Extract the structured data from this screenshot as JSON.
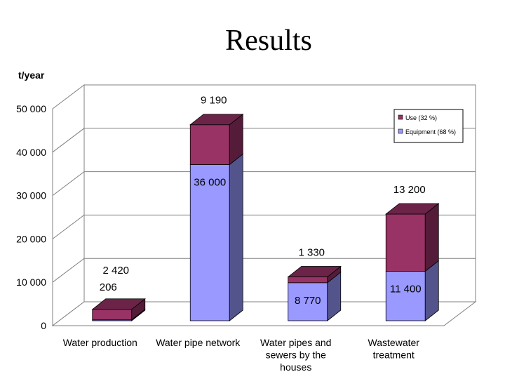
{
  "page": {
    "title": "Results"
  },
  "chart_data": {
    "type": "bar",
    "stacked": true,
    "three_d": true,
    "ylabel": "t/year",
    "ylim": [
      0,
      50000
    ],
    "yticks": [
      "0",
      "10 000",
      "20 000",
      "30 000",
      "40 000",
      "50 000"
    ],
    "grid": true,
    "legend_position": "top-right",
    "categories": [
      [
        "Water production"
      ],
      [
        "Water pipe network"
      ],
      [
        "Water pipes and",
        "sewers by the",
        "houses"
      ],
      [
        "Wastewater",
        "treatment"
      ]
    ],
    "series": [
      {
        "name": "Equipment (68 %)",
        "color": "#9999ff",
        "values": [
          206,
          36000,
          8770,
          11400
        ],
        "labels": [
          "206",
          "36 000",
          "8 770",
          "11 400"
        ]
      },
      {
        "name": "Use (32 %)",
        "color": "#993366",
        "values": [
          2420,
          9190,
          1330,
          13200
        ],
        "labels": [
          "2 420",
          "9 190",
          "1 330",
          "13 200"
        ]
      }
    ],
    "legend": [
      "Use (32 %)",
      "Equipment (68 %)"
    ]
  }
}
